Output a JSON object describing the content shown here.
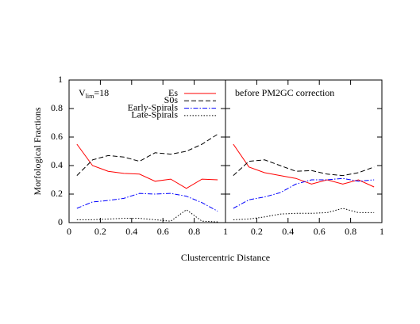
{
  "chart_data": [
    {
      "type": "line",
      "ylabel": "Morfological Fractions",
      "xlabel": "Clustercentric Distance",
      "annotation": [
        "V",
        "lim",
        "=18"
      ],
      "x": [
        0.05,
        0.15,
        0.25,
        0.35,
        0.45,
        0.55,
        0.65,
        0.75,
        0.85,
        0.95
      ],
      "xlim": [
        0,
        1
      ],
      "ylim": [
        0,
        1
      ],
      "xticks": [
        0,
        0.2,
        0.4,
        0.6,
        0.8,
        1
      ],
      "yticks": [
        0,
        0.2,
        0.4,
        0.6,
        0.8,
        1
      ],
      "show_ytick_labels": true,
      "legend": true,
      "legend_loc": "upper right",
      "series": [
        {
          "name": "Es",
          "color": "#ff0000",
          "linestyle": "solid",
          "values": [
            0.55,
            0.4,
            0.36,
            0.345,
            0.34,
            0.29,
            0.305,
            0.24,
            0.305,
            0.3
          ]
        },
        {
          "name": "S0s",
          "color": "#000000",
          "linestyle": "dashed",
          "values": [
            0.33,
            0.44,
            0.47,
            0.46,
            0.43,
            0.49,
            0.48,
            0.5,
            0.55,
            0.62
          ]
        },
        {
          "name": "Early-Spirals",
          "color": "#0000ff",
          "linestyle": "dashdot",
          "values": [
            0.1,
            0.145,
            0.155,
            0.17,
            0.205,
            0.2,
            0.205,
            0.185,
            0.14,
            0.08
          ]
        },
        {
          "name": "Late-Spirals",
          "color": "#000000",
          "linestyle": "dotted",
          "values": [
            0.02,
            0.02,
            0.025,
            0.03,
            0.03,
            0.02,
            0.01,
            0.09,
            0.01,
            0.005
          ]
        }
      ]
    },
    {
      "type": "line",
      "annotation": [
        "before PM2GC correction"
      ],
      "x": [
        0.05,
        0.15,
        0.25,
        0.35,
        0.45,
        0.55,
        0.65,
        0.75,
        0.85,
        0.95
      ],
      "xlim": [
        0,
        1
      ],
      "ylim": [
        0,
        1
      ],
      "xticks": [
        0.2,
        0.4,
        0.6,
        0.8,
        1
      ],
      "yticks": [
        0,
        0.2,
        0.4,
        0.6,
        0.8,
        1
      ],
      "show_ytick_labels": false,
      "legend": false,
      "series": [
        {
          "color": "#ff0000",
          "linestyle": "solid",
          "values": [
            0.55,
            0.39,
            0.35,
            0.33,
            0.31,
            0.27,
            0.3,
            0.27,
            0.3,
            0.25
          ]
        },
        {
          "color": "#000000",
          "linestyle": "dashed",
          "values": [
            0.33,
            0.43,
            0.44,
            0.4,
            0.36,
            0.365,
            0.34,
            0.33,
            0.35,
            0.39
          ]
        },
        {
          "color": "#0000ff",
          "linestyle": "dashdot",
          "values": [
            0.1,
            0.16,
            0.18,
            0.21,
            0.27,
            0.3,
            0.3,
            0.31,
            0.29,
            0.3
          ]
        },
        {
          "color": "#000000",
          "linestyle": "dotted",
          "values": [
            0.02,
            0.025,
            0.04,
            0.06,
            0.065,
            0.065,
            0.07,
            0.1,
            0.07,
            0.07
          ]
        }
      ]
    }
  ]
}
